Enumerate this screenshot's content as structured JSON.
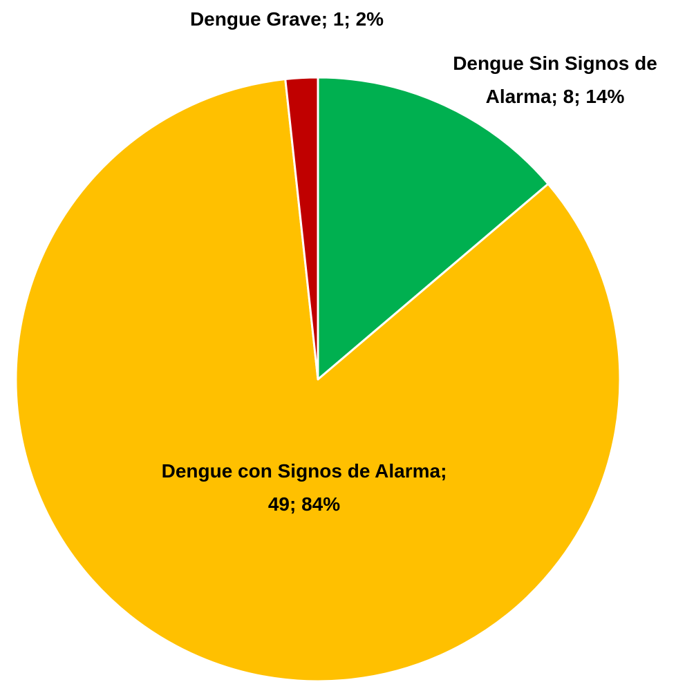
{
  "chart_data": {
    "type": "pie",
    "categories": [
      "Dengue Sin Signos de Alarma",
      "Dengue con Signos de Alarma",
      "Dengue Grave"
    ],
    "values": [
      8,
      49,
      1
    ],
    "percent_labels": [
      "14%",
      "84%",
      "2%"
    ],
    "label_separator": "; ",
    "colors": [
      "#00b050",
      "#ffc000",
      "#c00000"
    ]
  }
}
